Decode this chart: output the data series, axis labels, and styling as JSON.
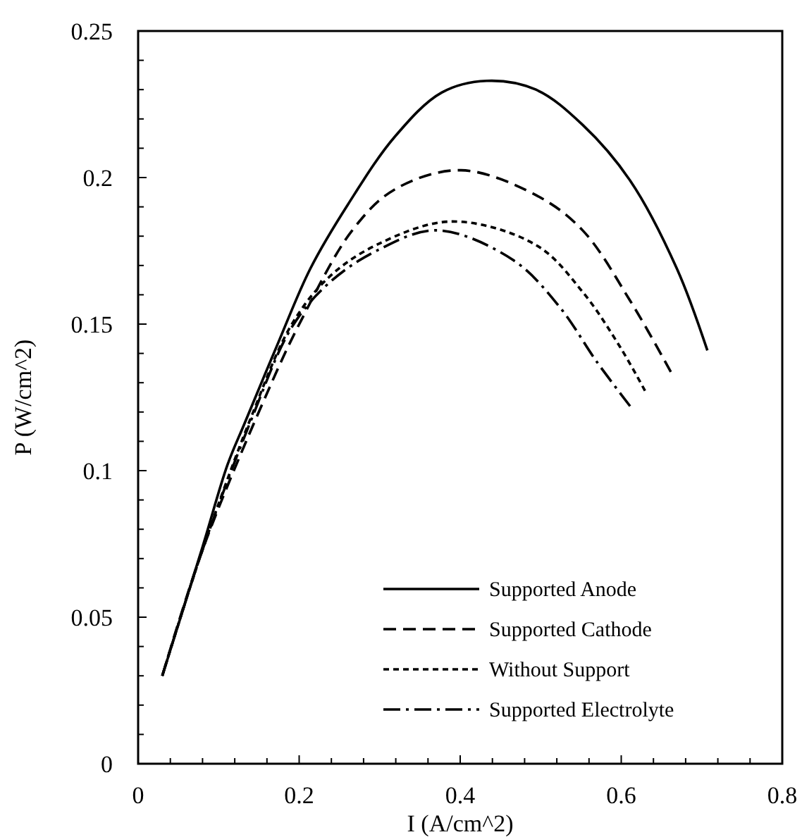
{
  "chart_data": {
    "type": "line",
    "xlabel": "I (A/cm^2)",
    "ylabel": "P (W/cm^2)",
    "xlim": [
      0,
      0.8
    ],
    "ylim": [
      0,
      0.25
    ],
    "xticks": [
      0,
      {
        "value": 0.04,
        "label": null
      },
      {
        "value": 0.08,
        "label": null
      },
      {
        "value": 0.12,
        "label": null
      },
      {
        "value": 0.16,
        "label": null
      },
      0.2,
      {
        "value": 0.24,
        "label": null
      },
      {
        "value": 0.28,
        "label": null
      },
      {
        "value": 0.32,
        "label": null
      },
      {
        "value": 0.36,
        "label": null
      },
      0.4,
      {
        "value": 0.44,
        "label": null
      },
      {
        "value": 0.48,
        "label": null
      },
      {
        "value": 0.52,
        "label": null
      },
      {
        "value": 0.56,
        "label": null
      },
      0.6,
      {
        "value": 0.64,
        "label": null
      },
      {
        "value": 0.68,
        "label": null
      },
      {
        "value": 0.72,
        "label": null
      },
      {
        "value": 0.76,
        "label": null
      },
      0.8
    ],
    "yticks": [
      0,
      {
        "value": 0.01,
        "label": null
      },
      {
        "value": 0.02,
        "label": null
      },
      {
        "value": 0.03,
        "label": null
      },
      {
        "value": 0.04,
        "label": null
      },
      0.05,
      {
        "value": 0.06,
        "label": null
      },
      {
        "value": 0.07,
        "label": null
      },
      {
        "value": 0.08,
        "label": null
      },
      {
        "value": 0.09,
        "label": null
      },
      0.1,
      {
        "value": 0.11,
        "label": null
      },
      {
        "value": 0.12,
        "label": null
      },
      {
        "value": 0.13,
        "label": null
      },
      {
        "value": 0.14,
        "label": null
      },
      0.15,
      {
        "value": 0.16,
        "label": null
      },
      {
        "value": 0.17,
        "label": null
      },
      {
        "value": 0.18,
        "label": null
      },
      {
        "value": 0.19,
        "label": null
      },
      0.2,
      {
        "value": 0.21,
        "label": null
      },
      {
        "value": 0.22,
        "label": null
      },
      {
        "value": 0.23,
        "label": null
      },
      {
        "value": 0.24,
        "label": null
      },
      0.25
    ],
    "grid": false,
    "legend": "bottom right",
    "series": [
      {
        "name": "Supported Anode",
        "color": "#000000",
        "line_style": "solid",
        "x": [
          0.03,
          0.08,
          0.111,
          0.132,
          0.173,
          0.214,
          0.261,
          0.319,
          0.377,
          0.433,
          0.494,
          0.552,
          0.611,
          0.669,
          0.707
        ],
        "values": [
          0.03,
          0.074,
          0.102,
          0.116,
          0.143,
          0.169,
          0.191,
          0.214,
          0.229,
          0.233,
          0.23,
          0.218,
          0.199,
          0.169,
          0.141
        ]
      },
      {
        "name": "Supported Cathode",
        "color": "#000000",
        "line_style": "dashed",
        "x": [
          0.03,
          0.08,
          0.161,
          0.202,
          0.266,
          0.319,
          0.401,
          0.494,
          0.552,
          0.611,
          0.665
        ],
        "values": [
          0.03,
          0.073,
          0.127,
          0.151,
          0.182,
          0.196,
          0.2025,
          0.194,
          0.182,
          0.158,
          0.132
        ]
      },
      {
        "name": "Without Support",
        "color": "#000000",
        "line_style": "dotted",
        "x": [
          0.03,
          0.08,
          0.14,
          0.191,
          0.237,
          0.296,
          0.389,
          0.494,
          0.552,
          0.599,
          0.632
        ],
        "values": [
          0.03,
          0.073,
          0.118,
          0.15,
          0.166,
          0.177,
          0.185,
          0.177,
          0.161,
          0.142,
          0.126
        ]
      },
      {
        "name": "Supported Electrolyte",
        "color": "#000000",
        "line_style": "dashdot",
        "x": [
          0.03,
          0.08,
          0.14,
          0.191,
          0.237,
          0.296,
          0.371,
          0.465,
          0.523,
          0.57,
          0.611
        ],
        "values": [
          0.03,
          0.073,
          0.117,
          0.149,
          0.164,
          0.175,
          0.182,
          0.172,
          0.156,
          0.137,
          0.122
        ]
      }
    ]
  }
}
